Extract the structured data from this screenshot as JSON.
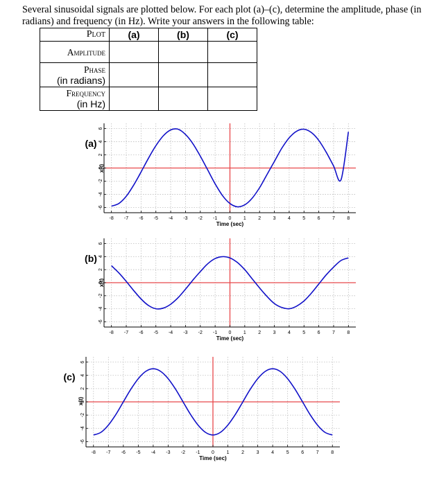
{
  "intro": "Several sinusoidal signals are plotted below. For each plot (a)–(c), determine the amplitude, phase (in radians) and frequency (in Hz). Write your answers in the following table:",
  "table": {
    "header": "Plot",
    "columns": [
      "(a)",
      "(b)",
      "(c)"
    ],
    "rows": [
      {
        "label": "Amplitude",
        "unit": ""
      },
      {
        "label": "Phase",
        "unit": "(in radians)"
      },
      {
        "label": "Frequency",
        "unit": "(in Hz)"
      }
    ]
  },
  "colors": {
    "signal": "#1010c8",
    "axis": "#e8474a",
    "grid": "#bdbdbd"
  },
  "chart_data": [
    {
      "type": "line",
      "label": "(a)",
      "xlabel": "Time (sec)",
      "ylabel": "x(t)",
      "xlim": [
        -8.5,
        8.5
      ],
      "ylim": [
        -6.8,
        6.8
      ],
      "xticks": [
        -8,
        -7,
        -6,
        -5,
        -4,
        -3,
        -2,
        -1,
        0,
        1,
        2,
        3,
        4,
        5,
        6,
        7,
        8
      ],
      "yticks": [
        -6,
        -4,
        -2,
        0,
        2,
        4,
        6
      ],
      "x": [
        -8,
        -7.5,
        -7,
        -6.5,
        -6,
        -5.5,
        -5,
        -4.5,
        -4,
        -3.5,
        -3,
        -2.5,
        -2,
        -1.5,
        -1,
        -0.5,
        0,
        0.5,
        1,
        1.5,
        2,
        2.5,
        3,
        3.5,
        4,
        4.5,
        5,
        5.5,
        6,
        6.5,
        7,
        7.5,
        8
      ],
      "y": [
        -5.8,
        -5.4,
        -4.3,
        -2.6,
        -0.6,
        1.5,
        3.4,
        4.9,
        5.8,
        5.9,
        5.1,
        3.7,
        1.8,
        -0.3,
        -2.4,
        -4.2,
        -5.4,
        -5.9,
        -5.6,
        -4.6,
        -3.0,
        -1.0,
        1.0,
        3.0,
        4.6,
        5.6,
        5.9,
        5.4,
        4.2,
        2.4,
        0.3,
        -1.8,
        5.5
      ]
    },
    {
      "type": "line",
      "label": "(b)",
      "xlabel": "Time (sec)",
      "ylabel": "x(t)",
      "xlim": [
        -8.5,
        8.5
      ],
      "ylim": [
        -6.8,
        6.8
      ],
      "xticks": [
        -8,
        -7,
        -6,
        -5,
        -4,
        -3,
        -2,
        -1,
        0,
        1,
        2,
        3,
        4,
        5,
        6,
        7,
        8
      ],
      "yticks": [
        -6,
        -4,
        -2,
        0,
        2,
        4,
        6
      ],
      "x": [
        -8,
        -7.5,
        -7,
        -6.5,
        -6,
        -5.5,
        -5,
        -4.5,
        -4,
        -3.5,
        -3,
        -2.5,
        -2,
        -1.5,
        -1,
        -0.5,
        0,
        0.5,
        1,
        1.5,
        2,
        2.5,
        3,
        3.5,
        4,
        4.5,
        5,
        5.5,
        6,
        6.5,
        7,
        7.5,
        8
      ],
      "y": [
        2.6,
        1.5,
        0.2,
        -1.2,
        -2.5,
        -3.5,
        -4.0,
        -3.9,
        -3.3,
        -2.3,
        -1.0,
        0.4,
        1.7,
        2.9,
        3.7,
        4.0,
        3.8,
        3.1,
        2.0,
        0.6,
        -0.8,
        -2.1,
        -3.2,
        -3.8,
        -4.0,
        -3.6,
        -2.8,
        -1.6,
        -0.2,
        1.2,
        2.4,
        3.4,
        3.8
      ]
    },
    {
      "type": "line",
      "label": "(c)",
      "xlabel": "Time (sec)",
      "ylabel": "x(t)",
      "xlim": [
        -8.5,
        8.5
      ],
      "ylim": [
        -6.8,
        6.8
      ],
      "xticks": [
        -8,
        -7,
        -6,
        -5,
        -4,
        -3,
        -2,
        -1,
        0,
        1,
        2,
        3,
        4,
        5,
        6,
        7,
        8
      ],
      "yticks": [
        -6,
        -4,
        -2,
        0,
        2,
        4,
        6
      ],
      "x": [
        -8,
        -7.5,
        -7,
        -6.5,
        -6,
        -5.5,
        -5,
        -4.5,
        -4,
        -3.5,
        -3,
        -2.5,
        -2,
        -1.5,
        -1,
        -0.5,
        0,
        0.5,
        1,
        1.5,
        2,
        2.5,
        3,
        3.5,
        4,
        4.5,
        5,
        5.5,
        6,
        6.5,
        7,
        7.5,
        8
      ],
      "y": [
        -5.0,
        -4.6,
        -3.5,
        -1.9,
        0.0,
        1.9,
        3.5,
        4.6,
        5.0,
        4.6,
        3.5,
        1.9,
        0.0,
        -1.9,
        -3.5,
        -4.6,
        -5.0,
        -4.6,
        -3.5,
        -1.9,
        0.0,
        1.9,
        3.5,
        4.6,
        5.0,
        4.6,
        3.5,
        1.9,
        0.0,
        -1.9,
        -3.5,
        -4.6,
        -5.0
      ]
    }
  ]
}
